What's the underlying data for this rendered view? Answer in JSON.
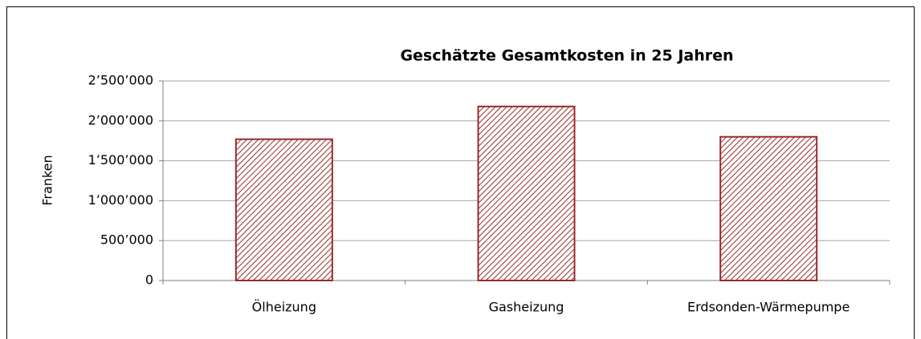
{
  "chart_data": {
    "type": "bar",
    "title": "Geschätzte Gesamtkosten in 25 Jahren",
    "y_label": "Franken",
    "categories": [
      "Ölheizung",
      "Gasheizung",
      "Erdsonden-Wärmepumpe"
    ],
    "values": [
      1770000,
      2180000,
      1800000
    ],
    "color": "#9b2a2a",
    "ylim": [
      0,
      2500000
    ],
    "yticks": [
      0,
      {
        "value": 500000,
        "label": "500’000"
      },
      {
        "value": 1000000,
        "label": "1’000’000"
      },
      {
        "value": 1500000,
        "label": "1’500’000"
      },
      {
        "value": 2000000,
        "label": "2’000’000"
      },
      {
        "value": 2500000,
        "label": "2’500’000"
      }
    ],
    "grid": true
  }
}
